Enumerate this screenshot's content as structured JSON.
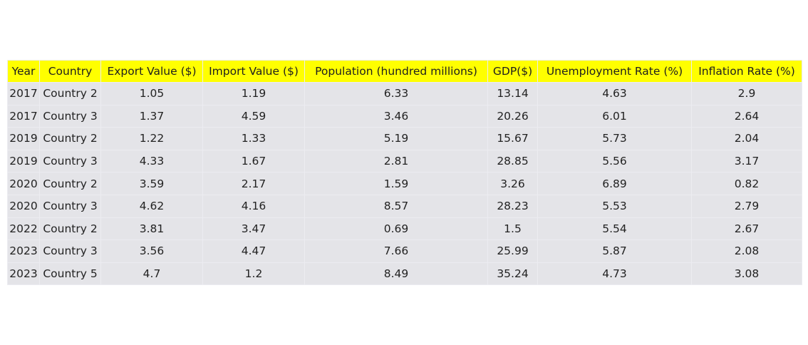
{
  "colors": {
    "header_bg": "#ffff00",
    "cell_bg": "#e4e4e8",
    "border": "#ececf1",
    "text": "#222222"
  },
  "chart_data": {
    "type": "table",
    "columns": [
      "Year",
      "Country",
      "Export Value ($)",
      "Import Value ($)",
      "Population (hundred millions)",
      "GDP($)",
      "Unemployment Rate (%)",
      "Inflation Rate (%)"
    ],
    "rows": [
      [
        "2017",
        "Country 2",
        "1.05",
        "1.19",
        "6.33",
        "13.14",
        "4.63",
        "2.9"
      ],
      [
        "2017",
        "Country 3",
        "1.37",
        "4.59",
        "3.46",
        "20.26",
        "6.01",
        "2.64"
      ],
      [
        "2019",
        "Country 2",
        "1.22",
        "1.33",
        "5.19",
        "15.67",
        "5.73",
        "2.04"
      ],
      [
        "2019",
        "Country 3",
        "4.33",
        "1.67",
        "2.81",
        "28.85",
        "5.56",
        "3.17"
      ],
      [
        "2020",
        "Country 2",
        "3.59",
        "2.17",
        "1.59",
        "3.26",
        "6.89",
        "0.82"
      ],
      [
        "2020",
        "Country 3",
        "4.62",
        "4.16",
        "8.57",
        "28.23",
        "5.53",
        "2.79"
      ],
      [
        "2022",
        "Country 2",
        "3.81",
        "3.47",
        "0.69",
        "1.5",
        "5.54",
        "2.67"
      ],
      [
        "2023",
        "Country 3",
        "3.56",
        "4.47",
        "7.66",
        "25.99",
        "5.87",
        "2.08"
      ],
      [
        "2023",
        "Country 5",
        "4.7",
        "1.2",
        "8.49",
        "35.24",
        "4.73",
        "3.08"
      ]
    ]
  }
}
